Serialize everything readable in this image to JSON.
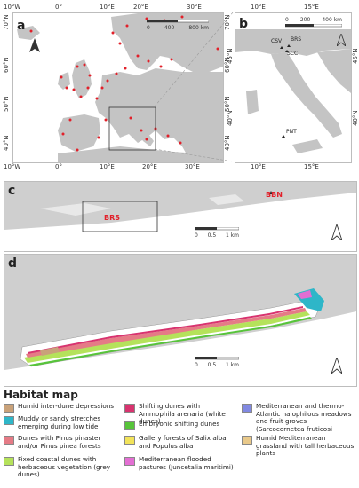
{
  "panels": {
    "a": {
      "label": "a",
      "top_labels": [
        "10°W",
        "0°",
        "10°E",
        "20°E",
        "30°E"
      ],
      "bottom_labels": [
        "10°W",
        "0°",
        "10°E",
        "20°E",
        "30°E"
      ],
      "left_labels": [
        "70°N",
        "60°N",
        "50°N",
        "40°N"
      ],
      "right_labels": [
        "70°N",
        "60°N",
        "50°N",
        "40°N"
      ],
      "scale_labels": [
        "0",
        "400",
        "800 km"
      ]
    },
    "b": {
      "label": "b",
      "top_labels": [
        "10°E",
        "15°E"
      ],
      "bottom_labels": [
        "10°E",
        "15°E"
      ],
      "left_labels": [
        "45°N",
        "40°N"
      ],
      "right_labels": [
        "45°N",
        "40°N"
      ],
      "scale_labels": [
        "0",
        "200",
        "400 km"
      ],
      "sites": [
        "CSV",
        "BRS",
        "SCC",
        "PNT"
      ]
    },
    "c": {
      "label": "c",
      "sites": [
        "BRS",
        "BBN"
      ],
      "scale_labels": [
        "0",
        "0.5",
        "1 km"
      ]
    },
    "d": {
      "label": "d",
      "scale_labels": [
        "0",
        "0.5",
        "1 km"
      ]
    }
  },
  "legend": {
    "title": "Habitat map",
    "items": [
      {
        "label": "Humid inter-dune depressions",
        "color": "#c9a27a"
      },
      {
        "label": "Muddy or sandy stretches emerging during low tide",
        "color": "#2eb6c8"
      },
      {
        "label": "Dunes with Pinus pinaster and/or Pinus pinea forests",
        "color": "#e57b86"
      },
      {
        "label": "Fixed coastal dunes with herbaceous vegetation (grey dunes)",
        "color": "#b5e25b"
      },
      {
        "label": "Shifting dunes with Ammophila arenaria (white dunes)",
        "color": "#d8336f"
      },
      {
        "label": "Embryonic shifting dunes",
        "color": "#57c43a"
      },
      {
        "label": "Gallery forests of Salix alba and Populus alba",
        "color": "#f2e35a"
      },
      {
        "label": "Mediterranean flooded pastures (Juncetalia maritimi)",
        "color": "#e36fd3"
      },
      {
        "label": "Mediterranean and thermo-Atlantic halophilous meadows and fruit groves (Sarcocornetea fruticosi",
        "color": "#8189e2"
      },
      {
        "label": "Humid Mediterranean grassland with tall herbaceous plants",
        "color": "#e9c98a"
      }
    ]
  },
  "colors": {
    "land": "#c4c4c4",
    "sea": "#ffffff",
    "coast_marker": "#e2202a"
  }
}
